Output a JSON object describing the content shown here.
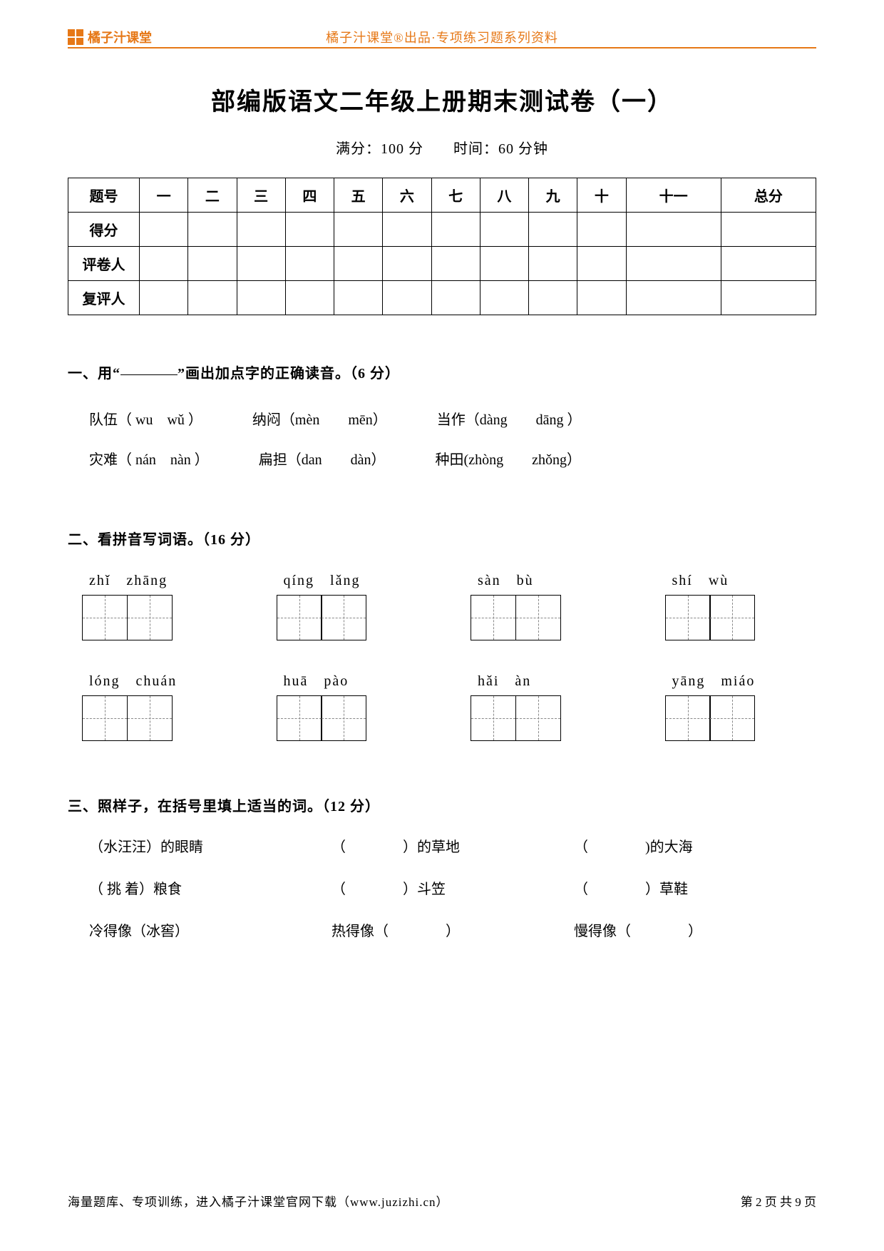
{
  "colors": {
    "accent": "#e67817",
    "text": "#000000",
    "background": "#ffffff",
    "dash": "#888888"
  },
  "header": {
    "brand": "橘子汁课堂",
    "center": "橘子汁课堂®出品·专项练习题系列资料"
  },
  "title": "部编版语文二年级上册期末测试卷（一）",
  "subtitle": "满分：100 分　　时间：60 分钟",
  "score_table": {
    "row_labels": [
      "题号",
      "得分",
      "评卷人",
      "复评人"
    ],
    "columns": [
      "一",
      "二",
      "三",
      "四",
      "五",
      "六",
      "七",
      "八",
      "九",
      "十",
      "十一",
      "总分"
    ]
  },
  "q1": {
    "title_prefix": "一、用“",
    "title_suffix": "”画出加点字的正确读音。（6 分）",
    "rows": [
      [
        "队伍（ wu　wǔ ）",
        "纳闷（mèn　　mēn）",
        "当作（dàng　　dāng ）"
      ],
      [
        "灾难（ nán　nàn ）",
        "扁担（dan　　dàn）",
        "种田(zhòng　　zhǒng）"
      ]
    ]
  },
  "q2": {
    "title": "二、看拼音写词语。（16 分）",
    "items": [
      "zhǐ　zhāng",
      "qíng　lǎng",
      "sàn　bù",
      "shí　wù",
      "lóng　chuán",
      "huā　pào",
      "hǎi　àn",
      "yāng　miáo"
    ],
    "box_count": 2
  },
  "q3": {
    "title": "三、照样子，在括号里填上适当的词。（12 分）",
    "rows": [
      [
        "（水汪汪）的眼睛",
        "（　　　　）的草地",
        "（　　　　)的大海"
      ],
      [
        "（ 挑 着）粮食",
        "（　　　　）斗笠",
        "（　　　　）草鞋"
      ],
      [
        "  冷得像（冰窖）",
        "热得像（　　　　）",
        "慢得像（　　　　）"
      ]
    ]
  },
  "footer": {
    "left": "海量题库、专项训练，进入橘子汁课堂官网下载（www.juzizhi.cn）",
    "page": "第 2 页 共 9 页"
  }
}
